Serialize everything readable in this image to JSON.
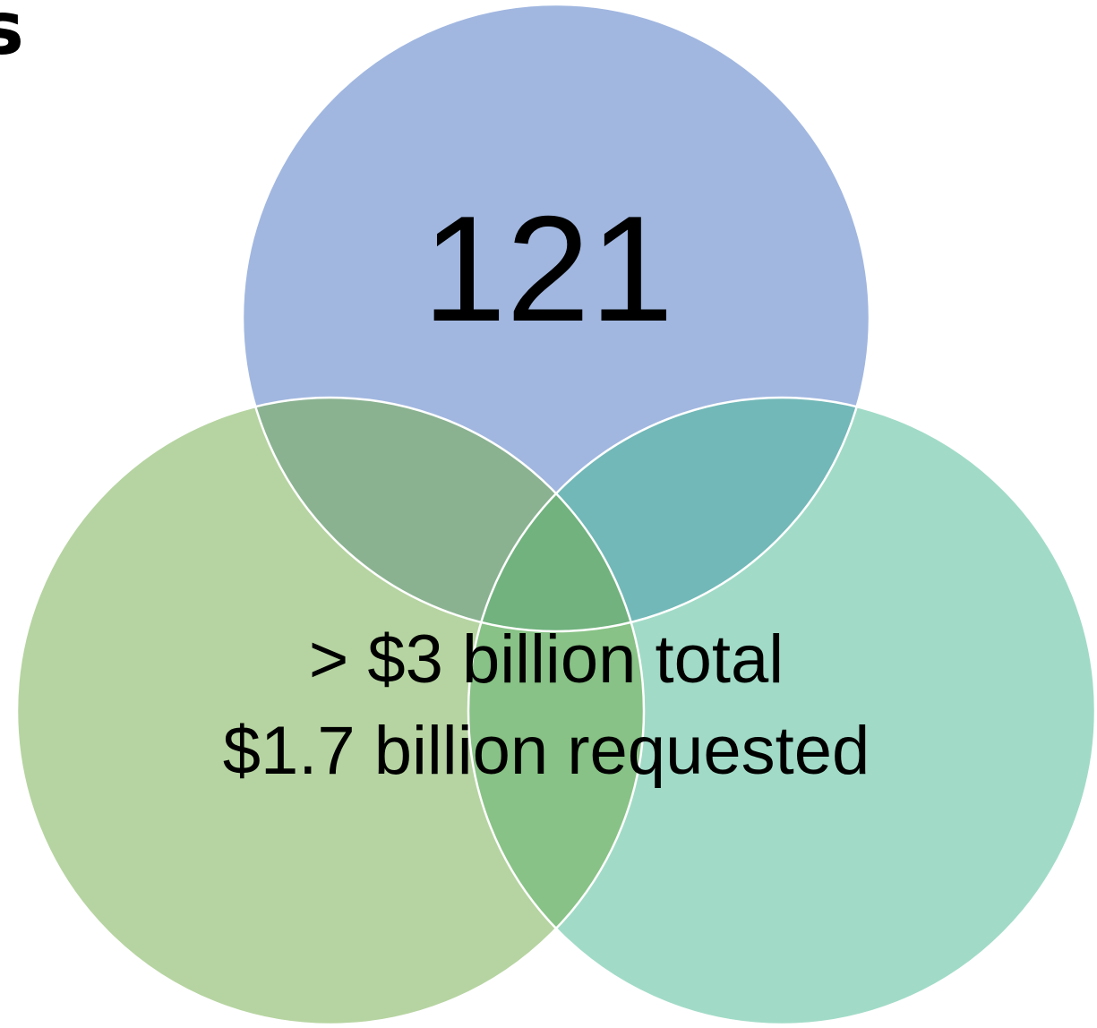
{
  "heading_fragment": "s",
  "diagram": {
    "circles": [
      {
        "id": "top",
        "color": "#A1B7E0"
      },
      {
        "id": "bottom-left",
        "color": "#B6D4A1"
      },
      {
        "id": "bottom-right",
        "color": "#A1DBC7"
      }
    ],
    "overlap_colors": {
      "top_left": "#8AB291",
      "top_right": "#72B8B8",
      "center": "#71B27E",
      "left_right": "#88C286"
    },
    "outline_color": "#ffffff",
    "top_label": "121",
    "center_lines": [
      "> $3 billion total",
      "$1.7 billion requested"
    ]
  }
}
